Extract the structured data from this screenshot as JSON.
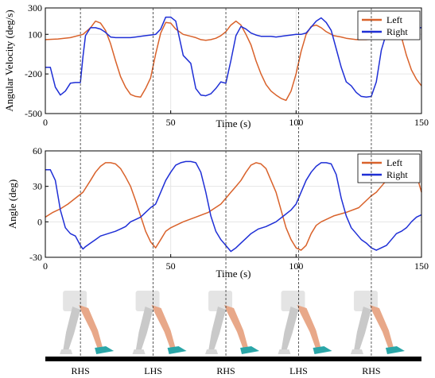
{
  "chart_data": [
    {
      "type": "line",
      "ylabel": "Angular Velocity (deg/s)",
      "xlabel": "Time (s)",
      "xlim": [
        0,
        150
      ],
      "ylim": [
        -500,
        300
      ],
      "yticks": [
        300,
        100,
        -200,
        -500
      ],
      "xticks": [
        0,
        50,
        100,
        150
      ],
      "legend_position": "top-right",
      "grid": true,
      "series": [
        {
          "name": "Left",
          "color": "#d9622b",
          "x": [
            0,
            5,
            10,
            15,
            18,
            20,
            22,
            24,
            26,
            28,
            30,
            32,
            34,
            36,
            38,
            40,
            42,
            44,
            46,
            48,
            50,
            52,
            55,
            58,
            60,
            62,
            64,
            66,
            68,
            70,
            72,
            74,
            76,
            78,
            80,
            82,
            84,
            86,
            88,
            90,
            92,
            94,
            96,
            98,
            100,
            102,
            104,
            106,
            108,
            110,
            112,
            115,
            118,
            120,
            124,
            128,
            130,
            132,
            134,
            136,
            138,
            140,
            142,
            144,
            146,
            148,
            150
          ],
          "y": [
            60,
            65,
            75,
            100,
            150,
            200,
            185,
            130,
            30,
            -100,
            -220,
            -300,
            -355,
            -370,
            -375,
            -310,
            -230,
            -50,
            110,
            190,
            185,
            140,
            100,
            85,
            75,
            60,
            55,
            60,
            70,
            90,
            120,
            170,
            200,
            170,
            100,
            20,
            -100,
            -200,
            -280,
            -330,
            -360,
            -385,
            -400,
            -330,
            -200,
            -30,
            100,
            160,
            170,
            150,
            120,
            90,
            80,
            70,
            60,
            60,
            65,
            80,
            95,
            110,
            150,
            180,
            80,
            -60,
            -170,
            -240,
            -290
          ]
        },
        {
          "name": "Right",
          "color": "#1f2fd6",
          "x": [
            0,
            2,
            4,
            6,
            8,
            10,
            12,
            14,
            15,
            16,
            18,
            20,
            22,
            24,
            26,
            28,
            30,
            32,
            34,
            36,
            38,
            40,
            42,
            44,
            46,
            48,
            50,
            52,
            55,
            58,
            60,
            62,
            64,
            66,
            68,
            70,
            72,
            74,
            76,
            78,
            80,
            82,
            84,
            86,
            88,
            90,
            92,
            94,
            96,
            98,
            100,
            102,
            104,
            106,
            108,
            110,
            112,
            114,
            116,
            118,
            120,
            122,
            124,
            126,
            128,
            130,
            132,
            134,
            136,
            138,
            140,
            142,
            144,
            146,
            148,
            150
          ],
          "y": [
            -150,
            -150,
            -300,
            -360,
            -330,
            -270,
            -265,
            -265,
            -70,
            90,
            150,
            150,
            140,
            115,
            80,
            75,
            75,
            75,
            75,
            80,
            85,
            90,
            95,
            100,
            140,
            230,
            230,
            200,
            -60,
            -120,
            -310,
            -360,
            -365,
            -350,
            -310,
            -260,
            -270,
            -100,
            90,
            160,
            140,
            110,
            95,
            85,
            85,
            85,
            80,
            85,
            90,
            95,
            100,
            100,
            110,
            155,
            200,
            225,
            190,
            130,
            -10,
            -150,
            -260,
            -290,
            -340,
            -370,
            -375,
            -370,
            -260,
            -20,
            110,
            150,
            150,
            150,
            150,
            150,
            150,
            150
          ]
        }
      ]
    },
    {
      "type": "line",
      "ylabel": "Angle (deg)",
      "xlabel": "Time (s)",
      "xlim": [
        0,
        150
      ],
      "ylim": [
        -30,
        60
      ],
      "yticks": [
        60,
        30,
        0,
        -30
      ],
      "xticks": [
        0,
        50,
        100,
        150
      ],
      "legend_position": "top-right",
      "grid": true,
      "series": [
        {
          "name": "Left",
          "color": "#d9622b",
          "x": [
            0,
            3,
            6,
            9,
            12,
            15,
            18,
            20,
            22,
            24,
            26,
            28,
            30,
            32,
            34,
            36,
            38,
            40,
            42,
            44,
            46,
            48,
            50,
            55,
            60,
            65,
            70,
            72,
            74,
            76,
            78,
            80,
            82,
            84,
            86,
            88,
            90,
            92,
            94,
            96,
            98,
            100,
            102,
            104,
            106,
            108,
            110,
            115,
            120,
            125,
            128,
            130,
            132,
            134,
            136,
            138,
            140,
            142,
            144,
            146,
            148,
            150
          ],
          "y": [
            4,
            8,
            11,
            15,
            20,
            25,
            35,
            42,
            47,
            50,
            50,
            49,
            45,
            38,
            30,
            18,
            5,
            -8,
            -17,
            -22,
            -15,
            -8,
            -5,
            0,
            4,
            8,
            15,
            20,
            25,
            30,
            35,
            42,
            48,
            50,
            49,
            45,
            35,
            25,
            10,
            -5,
            -15,
            -22,
            -24,
            -20,
            -10,
            -3,
            0,
            5,
            8,
            12,
            18,
            22,
            25,
            30,
            35,
            35,
            35,
            45,
            50,
            47,
            40,
            25
          ]
        },
        {
          "name": "Right",
          "color": "#1f2fd6",
          "x": [
            0,
            2,
            4,
            6,
            8,
            10,
            12,
            14,
            15,
            16,
            18,
            20,
            22,
            25,
            28,
            30,
            32,
            34,
            36,
            38,
            40,
            42,
            44,
            46,
            48,
            50,
            52,
            54,
            56,
            58,
            60,
            62,
            64,
            66,
            68,
            70,
            72,
            74,
            76,
            78,
            80,
            82,
            85,
            88,
            90,
            92,
            95,
            98,
            100,
            102,
            104,
            106,
            108,
            110,
            112,
            114,
            116,
            118,
            120,
            122,
            124,
            126,
            128,
            130,
            132,
            134,
            136,
            138,
            140,
            142,
            144,
            146,
            148,
            150
          ],
          "y": [
            44,
            44,
            35,
            10,
            -5,
            -10,
            -12,
            -20,
            -23,
            -21,
            -18,
            -15,
            -12,
            -10,
            -8,
            -6,
            -4,
            0,
            2,
            4,
            8,
            12,
            15,
            25,
            35,
            42,
            48,
            50,
            51,
            51,
            50,
            42,
            25,
            5,
            -8,
            -15,
            -20,
            -25,
            -22,
            -18,
            -14,
            -10,
            -6,
            -4,
            -2,
            0,
            5,
            10,
            15,
            25,
            35,
            42,
            47,
            50,
            50,
            49,
            40,
            20,
            5,
            -5,
            -10,
            -15,
            -18,
            -22,
            -24,
            -22,
            -20,
            -15,
            -10,
            -8,
            -5,
            0,
            4,
            6
          ]
        }
      ]
    }
  ],
  "events": [
    {
      "label": "RHS",
      "t": 14
    },
    {
      "label": "LHS",
      "t": 43
    },
    {
      "label": "RHS",
      "t": 72
    },
    {
      "label": "LHS",
      "t": 101
    },
    {
      "label": "RHS",
      "t": 130
    }
  ],
  "colors": {
    "left": "#d9622b",
    "right": "#1f2fd6",
    "skin": "#e8a889",
    "shoe": "#2aa6a8",
    "ghost": "#c9c9c9"
  }
}
